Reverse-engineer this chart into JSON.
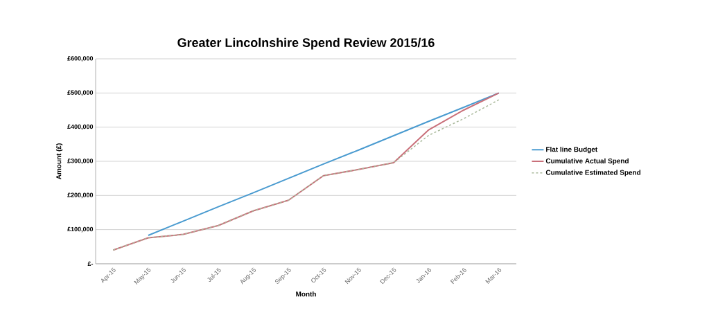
{
  "chart_data": {
    "type": "line",
    "title": "Greater Lincolnshire Spend Review 2015/16",
    "xlabel": "Month",
    "ylabel": "Amount (£)",
    "categories": [
      "Apr-15",
      "May-15",
      "Jun-15",
      "Jul-15",
      "Aug-15",
      "Sep-15",
      "Oct-15",
      "Nov-15",
      "Dec-15",
      "Jan-16",
      "Feb-16",
      "Mar-16"
    ],
    "series": [
      {
        "name": "Flat line Budget",
        "color": "#4a9bd0",
        "line_style": "solid",
        "values": [
          null,
          83000,
          125000,
          167000,
          208000,
          250000,
          292000,
          333000,
          375000,
          417000,
          458000,
          500000
        ]
      },
      {
        "name": "Cumulative Actual Spend",
        "color": "#c9707a",
        "line_style": "solid",
        "values": [
          40000,
          76000,
          86000,
          112000,
          155000,
          186000,
          258000,
          276000,
          296000,
          392000,
          450000,
          500000
        ]
      },
      {
        "name": "Cumulative Estimated Spend",
        "color": "#a8b89a",
        "line_style": "dashed",
        "values": [
          40000,
          76000,
          86000,
          112000,
          155000,
          186000,
          258000,
          276000,
          296000,
          376000,
          425000,
          480000
        ]
      }
    ],
    "ylim": [
      0,
      600000
    ],
    "yticks": [
      {
        "value": 0,
        "label": "£-"
      },
      {
        "value": 100000,
        "label": "£100,000"
      },
      {
        "value": 200000,
        "label": "£200,000"
      },
      {
        "value": 300000,
        "label": "£300,000"
      },
      {
        "value": 400000,
        "label": "£400,000"
      },
      {
        "value": 500000,
        "label": "£500,000"
      },
      {
        "value": 600000,
        "label": "£600,000"
      }
    ],
    "grid": "y",
    "legend": "right"
  }
}
